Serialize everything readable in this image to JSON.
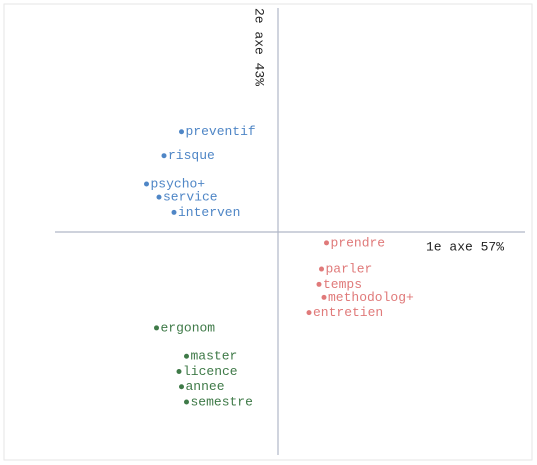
{
  "chart_data": {
    "type": "scatter",
    "x_label": "1e axe 57%",
    "y_label": "2e axe 43%",
    "xlim": [
      -1,
      1
    ],
    "ylim": [
      -1,
      1
    ],
    "series": [
      {
        "color": "#4f86c6",
        "labels": [
          "preventif",
          "risque",
          "psycho+",
          "service",
          "interven"
        ],
        "x": [
          -0.37,
          -0.44,
          -0.51,
          -0.46,
          -0.4
        ],
        "y": [
          0.46,
          0.35,
          0.22,
          0.16,
          0.09
        ]
      },
      {
        "color": "#e07a7a",
        "labels": [
          "prendre",
          "parler",
          "temps",
          "methodolog+",
          "entretien"
        ],
        "x": [
          0.21,
          0.19,
          0.18,
          0.2,
          0.14
        ],
        "y": [
          -0.05,
          -0.17,
          -0.24,
          -0.3,
          -0.37
        ]
      },
      {
        "color": "#3f7a48",
        "labels": [
          "ergonom",
          "master",
          "licence",
          "annee",
          "semestre"
        ],
        "x": [
          -0.47,
          -0.35,
          -0.38,
          -0.37,
          -0.35
        ],
        "y": [
          -0.44,
          -0.57,
          -0.64,
          -0.71,
          -0.78
        ]
      }
    ]
  }
}
